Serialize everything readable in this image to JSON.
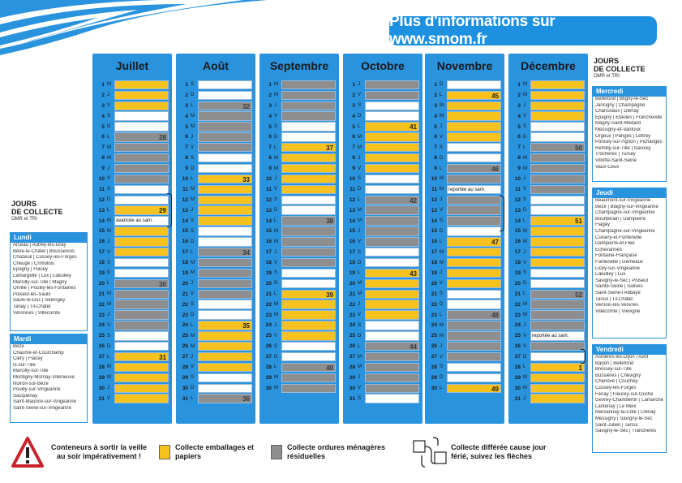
{
  "banner": {
    "text": "Plus d'informations sur www.smom.fr"
  },
  "colors": {
    "accent": "#2a93de",
    "emballages": "#f7c21d",
    "omr": "#8e8e8e"
  },
  "months": [
    {
      "name": "Juillet",
      "days": [
        {
          "n": "1",
          "d": "M",
          "c": "y"
        },
        {
          "n": "2",
          "d": "J",
          "c": "y"
        },
        {
          "n": "3",
          "d": "V",
          "c": "y"
        },
        {
          "n": "4",
          "d": "S",
          "c": "w"
        },
        {
          "n": "5",
          "d": "D",
          "c": "w"
        },
        {
          "n": "6",
          "d": "L",
          "c": "g",
          "wk": "28"
        },
        {
          "n": "7",
          "d": "M",
          "c": "g"
        },
        {
          "n": "8",
          "d": "M",
          "c": "g"
        },
        {
          "n": "9",
          "d": "J",
          "c": "g"
        },
        {
          "n": "10",
          "d": "V",
          "c": "g"
        },
        {
          "n": "11",
          "d": "S",
          "c": "w"
        },
        {
          "n": "12",
          "d": "D",
          "c": "w"
        },
        {
          "n": "13",
          "d": "L",
          "c": "y",
          "wk": "29"
        },
        {
          "n": "14",
          "d": "M",
          "c": "w",
          "note": "avancée au sam."
        },
        {
          "n": "15",
          "d": "M",
          "c": "y"
        },
        {
          "n": "16",
          "d": "J",
          "c": "y"
        },
        {
          "n": "17",
          "d": "V",
          "c": "y"
        },
        {
          "n": "18",
          "d": "S",
          "c": "w"
        },
        {
          "n": "19",
          "d": "D",
          "c": "w"
        },
        {
          "n": "20",
          "d": "L",
          "c": "g",
          "wk": "30"
        },
        {
          "n": "21",
          "d": "M",
          "c": "g"
        },
        {
          "n": "22",
          "d": "M",
          "c": "g"
        },
        {
          "n": "23",
          "d": "J",
          "c": "g"
        },
        {
          "n": "24",
          "d": "V",
          "c": "g"
        },
        {
          "n": "25",
          "d": "S",
          "c": "w"
        },
        {
          "n": "26",
          "d": "D",
          "c": "w"
        },
        {
          "n": "27",
          "d": "L",
          "c": "y",
          "wk": "31"
        },
        {
          "n": "28",
          "d": "M",
          "c": "y"
        },
        {
          "n": "29",
          "d": "M",
          "c": "y"
        },
        {
          "n": "30",
          "d": "J",
          "c": "y"
        },
        {
          "n": "31",
          "d": "V",
          "c": "y"
        }
      ]
    },
    {
      "name": "Août",
      "days": [
        {
          "n": "1",
          "d": "S",
          "c": "w"
        },
        {
          "n": "2",
          "d": "D",
          "c": "w"
        },
        {
          "n": "3",
          "d": "L",
          "c": "g",
          "wk": "32"
        },
        {
          "n": "4",
          "d": "M",
          "c": "g"
        },
        {
          "n": "5",
          "d": "M",
          "c": "g"
        },
        {
          "n": "6",
          "d": "J",
          "c": "g"
        },
        {
          "n": "7",
          "d": "V",
          "c": "g"
        },
        {
          "n": "8",
          "d": "S",
          "c": "w"
        },
        {
          "n": "9",
          "d": "D",
          "c": "w"
        },
        {
          "n": "10",
          "d": "L",
          "c": "y",
          "wk": "33"
        },
        {
          "n": "11",
          "d": "M",
          "c": "y"
        },
        {
          "n": "12",
          "d": "M",
          "c": "y"
        },
        {
          "n": "13",
          "d": "J",
          "c": "y"
        },
        {
          "n": "14",
          "d": "V",
          "c": "y"
        },
        {
          "n": "15",
          "d": "S",
          "c": "w"
        },
        {
          "n": "16",
          "d": "D",
          "c": "w"
        },
        {
          "n": "17",
          "d": "L",
          "c": "g",
          "wk": "34"
        },
        {
          "n": "18",
          "d": "M",
          "c": "g"
        },
        {
          "n": "19",
          "d": "M",
          "c": "g"
        },
        {
          "n": "20",
          "d": "J",
          "c": "g"
        },
        {
          "n": "21",
          "d": "V",
          "c": "g"
        },
        {
          "n": "22",
          "d": "S",
          "c": "w"
        },
        {
          "n": "23",
          "d": "D",
          "c": "w"
        },
        {
          "n": "24",
          "d": "L",
          "c": "y",
          "wk": "35"
        },
        {
          "n": "25",
          "d": "M",
          "c": "y"
        },
        {
          "n": "26",
          "d": "M",
          "c": "y"
        },
        {
          "n": "27",
          "d": "J",
          "c": "y"
        },
        {
          "n": "28",
          "d": "V",
          "c": "y"
        },
        {
          "n": "29",
          "d": "S",
          "c": "w"
        },
        {
          "n": "30",
          "d": "D",
          "c": "w"
        },
        {
          "n": "31",
          "d": "L",
          "c": "g",
          "wk": "36"
        }
      ]
    },
    {
      "name": "Septembre",
      "days": [
        {
          "n": "1",
          "d": "M",
          "c": "g"
        },
        {
          "n": "2",
          "d": "M",
          "c": "g"
        },
        {
          "n": "3",
          "d": "J",
          "c": "g"
        },
        {
          "n": "4",
          "d": "V",
          "c": "g"
        },
        {
          "n": "5",
          "d": "S",
          "c": "w"
        },
        {
          "n": "6",
          "d": "D",
          "c": "w"
        },
        {
          "n": "7",
          "d": "L",
          "c": "y",
          "wk": "37"
        },
        {
          "n": "8",
          "d": "M",
          "c": "y"
        },
        {
          "n": "9",
          "d": "M",
          "c": "y"
        },
        {
          "n": "10",
          "d": "J",
          "c": "y"
        },
        {
          "n": "11",
          "d": "V",
          "c": "y"
        },
        {
          "n": "12",
          "d": "S",
          "c": "w"
        },
        {
          "n": "13",
          "d": "D",
          "c": "w"
        },
        {
          "n": "14",
          "d": "L",
          "c": "g",
          "wk": "38"
        },
        {
          "n": "15",
          "d": "M",
          "c": "g"
        },
        {
          "n": "16",
          "d": "M",
          "c": "g"
        },
        {
          "n": "17",
          "d": "J",
          "c": "g"
        },
        {
          "n": "18",
          "d": "V",
          "c": "g"
        },
        {
          "n": "19",
          "d": "S",
          "c": "w"
        },
        {
          "n": "20",
          "d": "D",
          "c": "w"
        },
        {
          "n": "21",
          "d": "L",
          "c": "y",
          "wk": "39"
        },
        {
          "n": "22",
          "d": "M",
          "c": "y"
        },
        {
          "n": "23",
          "d": "M",
          "c": "y"
        },
        {
          "n": "24",
          "d": "J",
          "c": "y"
        },
        {
          "n": "25",
          "d": "V",
          "c": "y"
        },
        {
          "n": "26",
          "d": "S",
          "c": "w"
        },
        {
          "n": "27",
          "d": "D",
          "c": "w"
        },
        {
          "n": "28",
          "d": "L",
          "c": "g",
          "wk": "40"
        },
        {
          "n": "29",
          "d": "M",
          "c": "g"
        },
        {
          "n": "30",
          "d": "M",
          "c": "g"
        }
      ]
    },
    {
      "name": "Octobre",
      "days": [
        {
          "n": "1",
          "d": "J",
          "c": "g"
        },
        {
          "n": "2",
          "d": "V",
          "c": "g"
        },
        {
          "n": "3",
          "d": "S",
          "c": "w"
        },
        {
          "n": "4",
          "d": "D",
          "c": "w"
        },
        {
          "n": "5",
          "d": "L",
          "c": "y",
          "wk": "41"
        },
        {
          "n": "6",
          "d": "M",
          "c": "y"
        },
        {
          "n": "7",
          "d": "M",
          "c": "y"
        },
        {
          "n": "8",
          "d": "J",
          "c": "y"
        },
        {
          "n": "9",
          "d": "V",
          "c": "y"
        },
        {
          "n": "10",
          "d": "S",
          "c": "w"
        },
        {
          "n": "11",
          "d": "D",
          "c": "w"
        },
        {
          "n": "12",
          "d": "L",
          "c": "g",
          "wk": "42"
        },
        {
          "n": "13",
          "d": "M",
          "c": "g"
        },
        {
          "n": "14",
          "d": "M",
          "c": "g"
        },
        {
          "n": "15",
          "d": "J",
          "c": "g"
        },
        {
          "n": "16",
          "d": "V",
          "c": "g"
        },
        {
          "n": "17",
          "d": "S",
          "c": "w"
        },
        {
          "n": "18",
          "d": "D",
          "c": "w"
        },
        {
          "n": "19",
          "d": "L",
          "c": "y",
          "wk": "43"
        },
        {
          "n": "20",
          "d": "M",
          "c": "y"
        },
        {
          "n": "21",
          "d": "M",
          "c": "y"
        },
        {
          "n": "22",
          "d": "J",
          "c": "y"
        },
        {
          "n": "23",
          "d": "V",
          "c": "y"
        },
        {
          "n": "24",
          "d": "S",
          "c": "w"
        },
        {
          "n": "25",
          "d": "D",
          "c": "w"
        },
        {
          "n": "26",
          "d": "L",
          "c": "g",
          "wk": "44"
        },
        {
          "n": "27",
          "d": "M",
          "c": "g"
        },
        {
          "n": "28",
          "d": "M",
          "c": "g"
        },
        {
          "n": "29",
          "d": "J",
          "c": "g"
        },
        {
          "n": "30",
          "d": "V",
          "c": "g"
        },
        {
          "n": "31",
          "d": "S",
          "c": "w"
        }
      ]
    },
    {
      "name": "Novembre",
      "days": [
        {
          "n": "1",
          "d": "D",
          "c": "w"
        },
        {
          "n": "2",
          "d": "L",
          "c": "y",
          "wk": "45"
        },
        {
          "n": "3",
          "d": "M",
          "c": "y"
        },
        {
          "n": "4",
          "d": "M",
          "c": "y"
        },
        {
          "n": "5",
          "d": "J",
          "c": "y"
        },
        {
          "n": "6",
          "d": "V",
          "c": "y"
        },
        {
          "n": "7",
          "d": "S",
          "c": "w"
        },
        {
          "n": "8",
          "d": "D",
          "c": "w"
        },
        {
          "n": "9",
          "d": "L",
          "c": "g",
          "wk": "46"
        },
        {
          "n": "10",
          "d": "M",
          "c": "g"
        },
        {
          "n": "11",
          "d": "M",
          "c": "w",
          "note": "reportée au sam."
        },
        {
          "n": "12",
          "d": "J",
          "c": "g"
        },
        {
          "n": "13",
          "d": "V",
          "c": "g"
        },
        {
          "n": "14",
          "d": "S",
          "c": "g"
        },
        {
          "n": "15",
          "d": "D",
          "c": "w"
        },
        {
          "n": "16",
          "d": "L",
          "c": "y",
          "wk": "47"
        },
        {
          "n": "17",
          "d": "M",
          "c": "y"
        },
        {
          "n": "18",
          "d": "M",
          "c": "y"
        },
        {
          "n": "19",
          "d": "J",
          "c": "y"
        },
        {
          "n": "20",
          "d": "V",
          "c": "y"
        },
        {
          "n": "21",
          "d": "S",
          "c": "w"
        },
        {
          "n": "22",
          "d": "D",
          "c": "w"
        },
        {
          "n": "23",
          "d": "L",
          "c": "g",
          "wk": "48"
        },
        {
          "n": "24",
          "d": "M",
          "c": "g"
        },
        {
          "n": "25",
          "d": "M",
          "c": "g"
        },
        {
          "n": "26",
          "d": "J",
          "c": "g"
        },
        {
          "n": "27",
          "d": "V",
          "c": "g"
        },
        {
          "n": "28",
          "d": "S",
          "c": "w"
        },
        {
          "n": "29",
          "d": "D",
          "c": "w"
        },
        {
          "n": "30",
          "d": "L",
          "c": "y",
          "wk": "49"
        }
      ]
    },
    {
      "name": "Décembre",
      "days": [
        {
          "n": "1",
          "d": "M",
          "c": "y"
        },
        {
          "n": "2",
          "d": "M",
          "c": "y"
        },
        {
          "n": "3",
          "d": "J",
          "c": "y"
        },
        {
          "n": "4",
          "d": "V",
          "c": "y"
        },
        {
          "n": "5",
          "d": "S",
          "c": "w"
        },
        {
          "n": "6",
          "d": "D",
          "c": "w"
        },
        {
          "n": "7",
          "d": "L",
          "c": "g",
          "wk": "50"
        },
        {
          "n": "8",
          "d": "M",
          "c": "g"
        },
        {
          "n": "9",
          "d": "M",
          "c": "g"
        },
        {
          "n": "10",
          "d": "J",
          "c": "g"
        },
        {
          "n": "11",
          "d": "V",
          "c": "g"
        },
        {
          "n": "12",
          "d": "S",
          "c": "w"
        },
        {
          "n": "13",
          "d": "D",
          "c": "w"
        },
        {
          "n": "14",
          "d": "L",
          "c": "y",
          "wk": "51"
        },
        {
          "n": "15",
          "d": "M",
          "c": "y"
        },
        {
          "n": "16",
          "d": "M",
          "c": "y"
        },
        {
          "n": "17",
          "d": "J",
          "c": "y"
        },
        {
          "n": "18",
          "d": "V",
          "c": "y"
        },
        {
          "n": "19",
          "d": "S",
          "c": "w"
        },
        {
          "n": "20",
          "d": "D",
          "c": "w"
        },
        {
          "n": "21",
          "d": "L",
          "c": "g",
          "wk": "52"
        },
        {
          "n": "22",
          "d": "M",
          "c": "g"
        },
        {
          "n": "23",
          "d": "M",
          "c": "g"
        },
        {
          "n": "24",
          "d": "J",
          "c": "g"
        },
        {
          "n": "25",
          "d": "V",
          "c": "w",
          "note": "reportée au sam."
        },
        {
          "n": "26",
          "d": "S",
          "c": "g"
        },
        {
          "n": "27",
          "d": "D",
          "c": "w"
        },
        {
          "n": "28",
          "d": "L",
          "c": "y",
          "wk": "1"
        },
        {
          "n": "29",
          "d": "M",
          "c": "y"
        },
        {
          "n": "30",
          "d": "M",
          "c": "y"
        },
        {
          "n": "31",
          "d": "J",
          "c": "y"
        }
      ]
    }
  ],
  "left_panel": {
    "title_line1": "JOURS",
    "title_line2": "DE COLLECTE",
    "subtitle": "OMR et TRI",
    "lundi": {
      "label": "Lundi",
      "items": [
        "Arceau | Autrey-lès-Gray",
        "Beire-le-Châtel | Boussenois",
        "Chazeuil | Cussey-les-Forges",
        "Cheuge | Crimolois",
        "Épagny | Flacey",
        "Lamargelle | Lux | Lœuilley",
        "Marcilly-sur-Tille | Magny",
        "Orville | Pouilly-les-Fontaines",
        "Poiseul-lès-Saulx",
        "Saulx-le-Duc | Selongey",
        "Tanay | Til-Châtel",
        "Véronnes | Villecomte"
      ]
    },
    "mardi": {
      "label": "Mardi",
      "items": [
        "Bèze",
        "Chaume-et-Courchamp",
        "Cléry | Flacey",
        "Is-sur-Tille",
        "Marcilly-sur-Tille",
        "Montigny-Mornay-Villeneuve",
        "Noiron-sur-Bèze",
        "Pouilly-sur-Vingeanne",
        "Sacquenay",
        "Saint-Maurice-sur-Vingeanne",
        "Saint-Seine-sur-Vingeanne"
      ]
    }
  },
  "right_panel": {
    "title_line1": "JOURS",
    "title_line2": "DE COLLECTE",
    "subtitle": "OMR et TRI",
    "mercredi": {
      "label": "Mercredi",
      "items": [
        "Bellefond | Bligny-le-Sec",
        "Jancigny | Champagne",
        "Chanceaux | Diénay",
        "Épagny | Étaules | Francheville",
        "Magny-Saint-Médard",
        "Messigny-et-Vantoux",
        "Orgeux | Panges | Lettrey",
        "Poncey-sur-l'Ignon | Pichanges",
        "Remilly-sur-Tille | Savoisy",
        "Trochères | Turcey",
        "Villotte-Saint-Seine",
        "Vaux-Ceux"
      ]
    },
    "jeudi": {
      "label": "Jeudi",
      "items": [
        "Beaumont-sur-Vingeanne",
        "Bèze | Blagny-sur-Vingeanne",
        "Champagne-sur-Vingeanne",
        "Bourberain | Dampierre",
        "Flagey",
        "Champagne-sur-Vingeanne",
        "Cuisery-et-Fontenelle",
        "Dampierre-et-Flée",
        "Échevannes",
        "Fontaine-Française",
        "Fontenelle | Gemeaux",
        "Licey-sur-Vingeanne",
        "Lœuilley | Lux",
        "Savigny-le-Sec | Poiseul",
        "Sainte-Seine | Salives",
        "Saint-Seine-l'Abbaye",
        "Tarsul | Til-Châtel",
        "Vernois-lès-Vesvres",
        "Villecomte | Viévigne"
      ]
    },
    "vendredi": {
      "label": "Vendredi",
      "items": [
        "Asnières-lès-Dijon | Avot",
        "Barjon | Bellefond",
        "Bressey-sur-Tille",
        "Bussières | Chevigny",
        "Chenôve | Couchey",
        "Cussey-les-Forges",
        "Fénay | Fleurey-sur-Ouche",
        "Gevrey-Chambertin | Lamarche",
        "Lantenay | Le Meix",
        "Marsannay-la-Côte | Clénay",
        "Messigny | Savigny-le-Sec",
        "Saint-Julien | Tarsul",
        "Savigny-le-Sec | Tranchères"
      ]
    }
  },
  "legend": {
    "warning": "Conteneurs à sortir la veille au soir impérativement !",
    "emballages": "Collecte emballages et papiers",
    "omr": "Collecte ordures ménagères résiduelles",
    "differee": "Collecte différée cause jour férié, suivez les flèches"
  }
}
